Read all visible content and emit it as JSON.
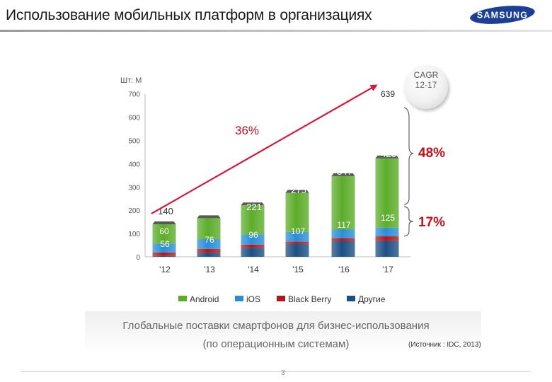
{
  "slide": {
    "title": "Использование мобильных платформ в организациях",
    "brand": "SAMSUNG",
    "caption_line1": "Глобальные поставки смартфонов для бизнес-использования",
    "caption_line2": "(по операционным системам)",
    "source": "(Источник : IDC, 2013)",
    "page_number": "3"
  },
  "cagr": {
    "line1": "CAGR",
    "line2": "12-17"
  },
  "colors": {
    "android": "#5cac2a",
    "ios": "#2a8ed6",
    "blackberry": "#b0171b",
    "other": "#1c4f84",
    "arrow": "#d61a3c",
    "callout_text": "#c0101a",
    "bar_cap": "#595959"
  },
  "chart_data": {
    "type": "bar",
    "stacked": true,
    "unit_label": "Шт: М",
    "categories": [
      "'12",
      "'13",
      "'14",
      "'15",
      "'16",
      "'17"
    ],
    "series": [
      {
        "name": "Android",
        "key": "android",
        "values": [
          84,
          90,
          125,
          168,
          230,
          298
        ]
      },
      {
        "name": "iOS",
        "key": "ios",
        "values": [
          38,
          42,
          44,
          42,
          37,
          37
        ]
      },
      {
        "name": "Black Berry",
        "key": "blackberry",
        "values": [
          14,
          17,
          13,
          10,
          13,
          20
        ]
      },
      {
        "name": "Другие",
        "key": "other",
        "values": [
          4,
          17,
          39,
          55,
          67,
          68
        ]
      }
    ],
    "totals": [
      140,
      166,
      221,
      275,
      347,
      423
    ],
    "enterprise_totals": [
      56,
      76,
      96,
      107,
      117,
      125
    ],
    "extra_labels": [
      {
        "category_index": 0,
        "value": 60
      }
    ],
    "projected_total": {
      "category_index": 5,
      "value": 639
    },
    "growth_labels": {
      "arrow": "36%",
      "android_share": "48%",
      "other_share": "17%"
    },
    "ylim": [
      0,
      700
    ],
    "yticks": [
      0,
      100,
      200,
      300,
      400,
      500,
      600,
      700
    ],
    "ytick_labels": [
      "0",
      "100",
      "200",
      "300",
      "400",
      "500",
      "600",
      "700"
    ],
    "legend_position": "bottom",
    "grid": false
  }
}
